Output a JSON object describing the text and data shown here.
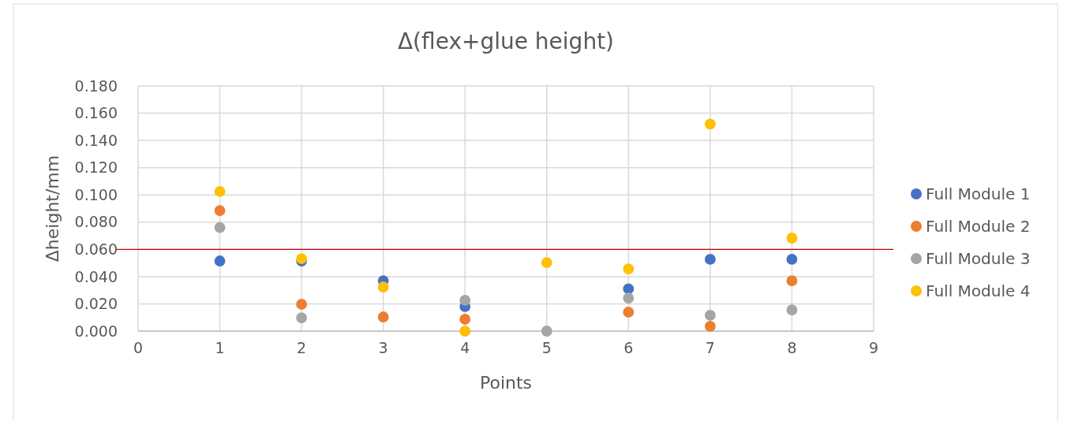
{
  "chart_data": {
    "type": "scatter",
    "title": "Δ(flex+glue height)",
    "xlabel": "Points",
    "ylabel": "Δheight/mm",
    "x": [
      1,
      2,
      3,
      4,
      5,
      6,
      7,
      8
    ],
    "series": [
      {
        "name": "Full Module 1",
        "color": "#4472c4",
        "values": [
          0.0515,
          0.0515,
          0.037,
          0.018,
          null,
          0.031,
          0.0527,
          0.0527
        ]
      },
      {
        "name": "Full Module 2",
        "color": "#ed7d31",
        "values": [
          0.0885,
          0.0197,
          0.0104,
          0.0087,
          null,
          0.0139,
          0.0035,
          0.037
        ]
      },
      {
        "name": "Full Module 3",
        "color": "#a5a5a5",
        "values": [
          0.076,
          0.0098,
          null,
          0.0226,
          0,
          0.0243,
          0.0116,
          0.0156
        ]
      },
      {
        "name": "Full Module 4",
        "color": "#ffc000",
        "values": [
          0.1025,
          0.0532,
          0.0324,
          0,
          0.0503,
          0.0457,
          0.152,
          0.0683
        ]
      }
    ],
    "xlim": [
      0,
      9
    ],
    "xticks": [
      0,
      1,
      2,
      3,
      4,
      5,
      6,
      7,
      8,
      9
    ],
    "ylim": [
      0,
      0.18
    ],
    "yticks": [
      {
        "value": 0,
        "label": "0.000"
      },
      {
        "value": 0.02,
        "label": "0.020"
      },
      {
        "value": 0.04,
        "label": "0.040"
      },
      {
        "value": 0.06,
        "label": "0.060"
      },
      {
        "value": 0.08,
        "label": "0.080"
      },
      {
        "value": 0.1,
        "label": "0.100"
      },
      {
        "value": 0.12,
        "label": "0.120"
      },
      {
        "value": 0.14,
        "label": "0.140"
      },
      {
        "value": 0.16,
        "label": "0.160"
      },
      {
        "value": 0.18,
        "label": "0.180"
      }
    ],
    "ref_lines": [
      {
        "axis": "y",
        "value": 0.06,
        "color": "#c00000"
      }
    ],
    "grid": true,
    "legend": "right",
    "marker": "circle"
  }
}
